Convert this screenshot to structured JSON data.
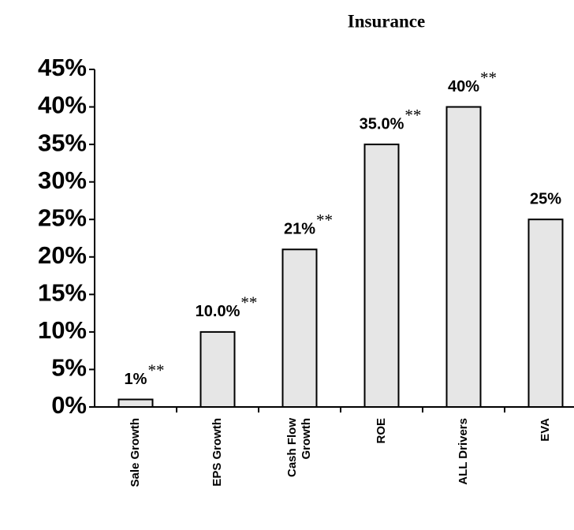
{
  "chart_data": {
    "type": "bar",
    "title": "Insurance",
    "categories": [
      "Sale Growth",
      "EPS Growth",
      "Cash Flow\nGrowth",
      "ROE",
      "ALL Drivers",
      "EVA"
    ],
    "values": [
      1,
      10,
      21,
      35,
      40,
      25
    ],
    "value_labels": [
      "1%",
      "10.0%",
      "21%",
      "35.0%",
      "40%",
      "25%"
    ],
    "value_notes": [
      "**",
      "**",
      "**",
      "**",
      "**",
      null
    ],
    "color": "#e6e6e6",
    "ylim": [
      0,
      45
    ],
    "yticks": [
      {
        "value": 0,
        "label": "0%"
      },
      {
        "value": 5,
        "label": "5%"
      },
      {
        "value": 10,
        "label": "10%"
      },
      {
        "value": 15,
        "label": "15%"
      },
      {
        "value": 20,
        "label": "20%"
      },
      {
        "value": 25,
        "label": "25%"
      },
      {
        "value": 30,
        "label": "30%"
      },
      {
        "value": 35,
        "label": "35%"
      },
      {
        "value": 40,
        "label": "40%"
      },
      {
        "value": 45,
        "label": "45%"
      }
    ],
    "grid": false
  }
}
